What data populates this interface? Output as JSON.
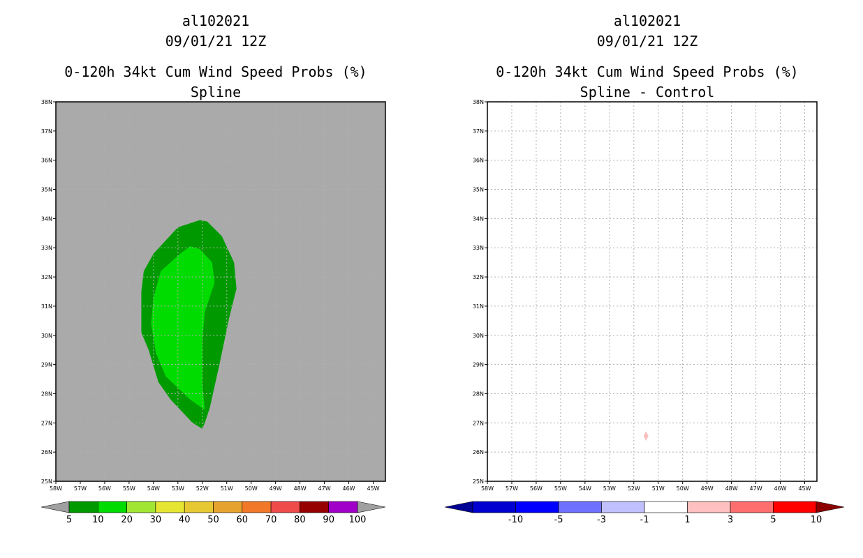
{
  "colors": {
    "land_bg": "#aaaaaa",
    "green_10": "#009a00",
    "green_20": "#00dc00",
    "marker_pink": "#f9c0c0",
    "grid": "#b0b0b0"
  },
  "chart_data": [
    {
      "type": "contour_map",
      "storm_id": "al102021",
      "date": "09/01/21 12Z",
      "title": "0-120h 34kt Cum Wind Speed Probs (%)",
      "subtitle": "Spline",
      "lon_range": [
        -58,
        -44.5
      ],
      "lat_range": [
        25,
        38
      ],
      "x_ticks": [
        "58W",
        "57W",
        "56W",
        "55W",
        "54W",
        "53W",
        "52W",
        "51W",
        "50W",
        "49W",
        "48W",
        "47W",
        "46W",
        "45W"
      ],
      "y_ticks": [
        "25N",
        "26N",
        "27N",
        "28N",
        "29N",
        "30N",
        "31N",
        "32N",
        "33N",
        "34N",
        "35N",
        "36N",
        "37N",
        "38N"
      ],
      "contours": [
        {
          "level": 5,
          "color": "#009a00",
          "polygon": [
            [
              -53.0,
              33.7
            ],
            [
              -52.1,
              33.95
            ],
            [
              -51.8,
              33.9
            ],
            [
              -51.2,
              33.4
            ],
            [
              -50.7,
              32.5
            ],
            [
              -50.6,
              31.6
            ],
            [
              -50.9,
              30.6
            ],
            [
              -51.3,
              29.0
            ],
            [
              -51.7,
              27.5
            ],
            [
              -51.9,
              27.0
            ],
            [
              -52.0,
              26.8
            ],
            [
              -52.4,
              27.0
            ],
            [
              -53.3,
              27.8
            ],
            [
              -53.8,
              28.4
            ],
            [
              -54.2,
              29.5
            ],
            [
              -54.5,
              30.1
            ],
            [
              -54.5,
              31.5
            ],
            [
              -54.4,
              32.2
            ],
            [
              -54.0,
              32.8
            ]
          ]
        },
        {
          "level": 10,
          "color": "#00dc00",
          "polygon": [
            [
              -52.9,
              32.8
            ],
            [
              -52.5,
              33.05
            ],
            [
              -52.1,
              32.95
            ],
            [
              -51.6,
              32.5
            ],
            [
              -51.5,
              31.8
            ],
            [
              -51.9,
              30.8
            ],
            [
              -52.0,
              29.8
            ],
            [
              -52.0,
              28.3
            ],
            [
              -51.9,
              27.45
            ],
            [
              -52.5,
              27.8
            ],
            [
              -53.5,
              28.6
            ],
            [
              -53.9,
              29.4
            ],
            [
              -54.1,
              30.4
            ],
            [
              -54.0,
              31.3
            ],
            [
              -53.7,
              32.2
            ],
            [
              -53.3,
              32.5
            ]
          ]
        }
      ],
      "colorbar": {
        "labels": [
          "5",
          "10",
          "20",
          "30",
          "40",
          "50",
          "60",
          "70",
          "80",
          "90",
          "100"
        ],
        "colors": [
          "#009a00",
          "#00dc00",
          "#a0e632",
          "#e6e632",
          "#e6c832",
          "#e6a32d",
          "#f07828",
          "#f04b4b",
          "#960000",
          "#a000c8"
        ],
        "end_color": "#a0a0a0"
      }
    },
    {
      "type": "contour_map",
      "storm_id": "al102021",
      "date": "09/01/21 12Z",
      "title": "0-120h 34kt Cum Wind Speed Probs (%)",
      "subtitle": "Spline - Control",
      "lon_range": [
        -58,
        -44.5
      ],
      "lat_range": [
        25,
        38
      ],
      "x_ticks": [
        "58W",
        "57W",
        "56W",
        "55W",
        "54W",
        "53W",
        "52W",
        "51W",
        "50W",
        "49W",
        "48W",
        "47W",
        "46W",
        "45W"
      ],
      "y_ticks": [
        "25N",
        "26N",
        "27N",
        "28N",
        "29N",
        "30N",
        "31N",
        "32N",
        "33N",
        "34N",
        "35N",
        "36N",
        "37N",
        "38N"
      ],
      "markers": [
        {
          "lon": -51.5,
          "lat": 26.55,
          "value": 1,
          "color": "#f9c0c0"
        }
      ],
      "colorbar": {
        "labels": [
          "-10",
          "-5",
          "-3",
          "-1",
          "1",
          "3",
          "5",
          "10"
        ],
        "colors": [
          "#0000d0",
          "#0000ff",
          "#7070ff",
          "#c0c0ff",
          "#ffffff",
          "#ffc0c0",
          "#ff6e6e",
          "#ff0000"
        ],
        "low_end_color": "#000096",
        "high_end_color": "#8c0000"
      }
    }
  ]
}
